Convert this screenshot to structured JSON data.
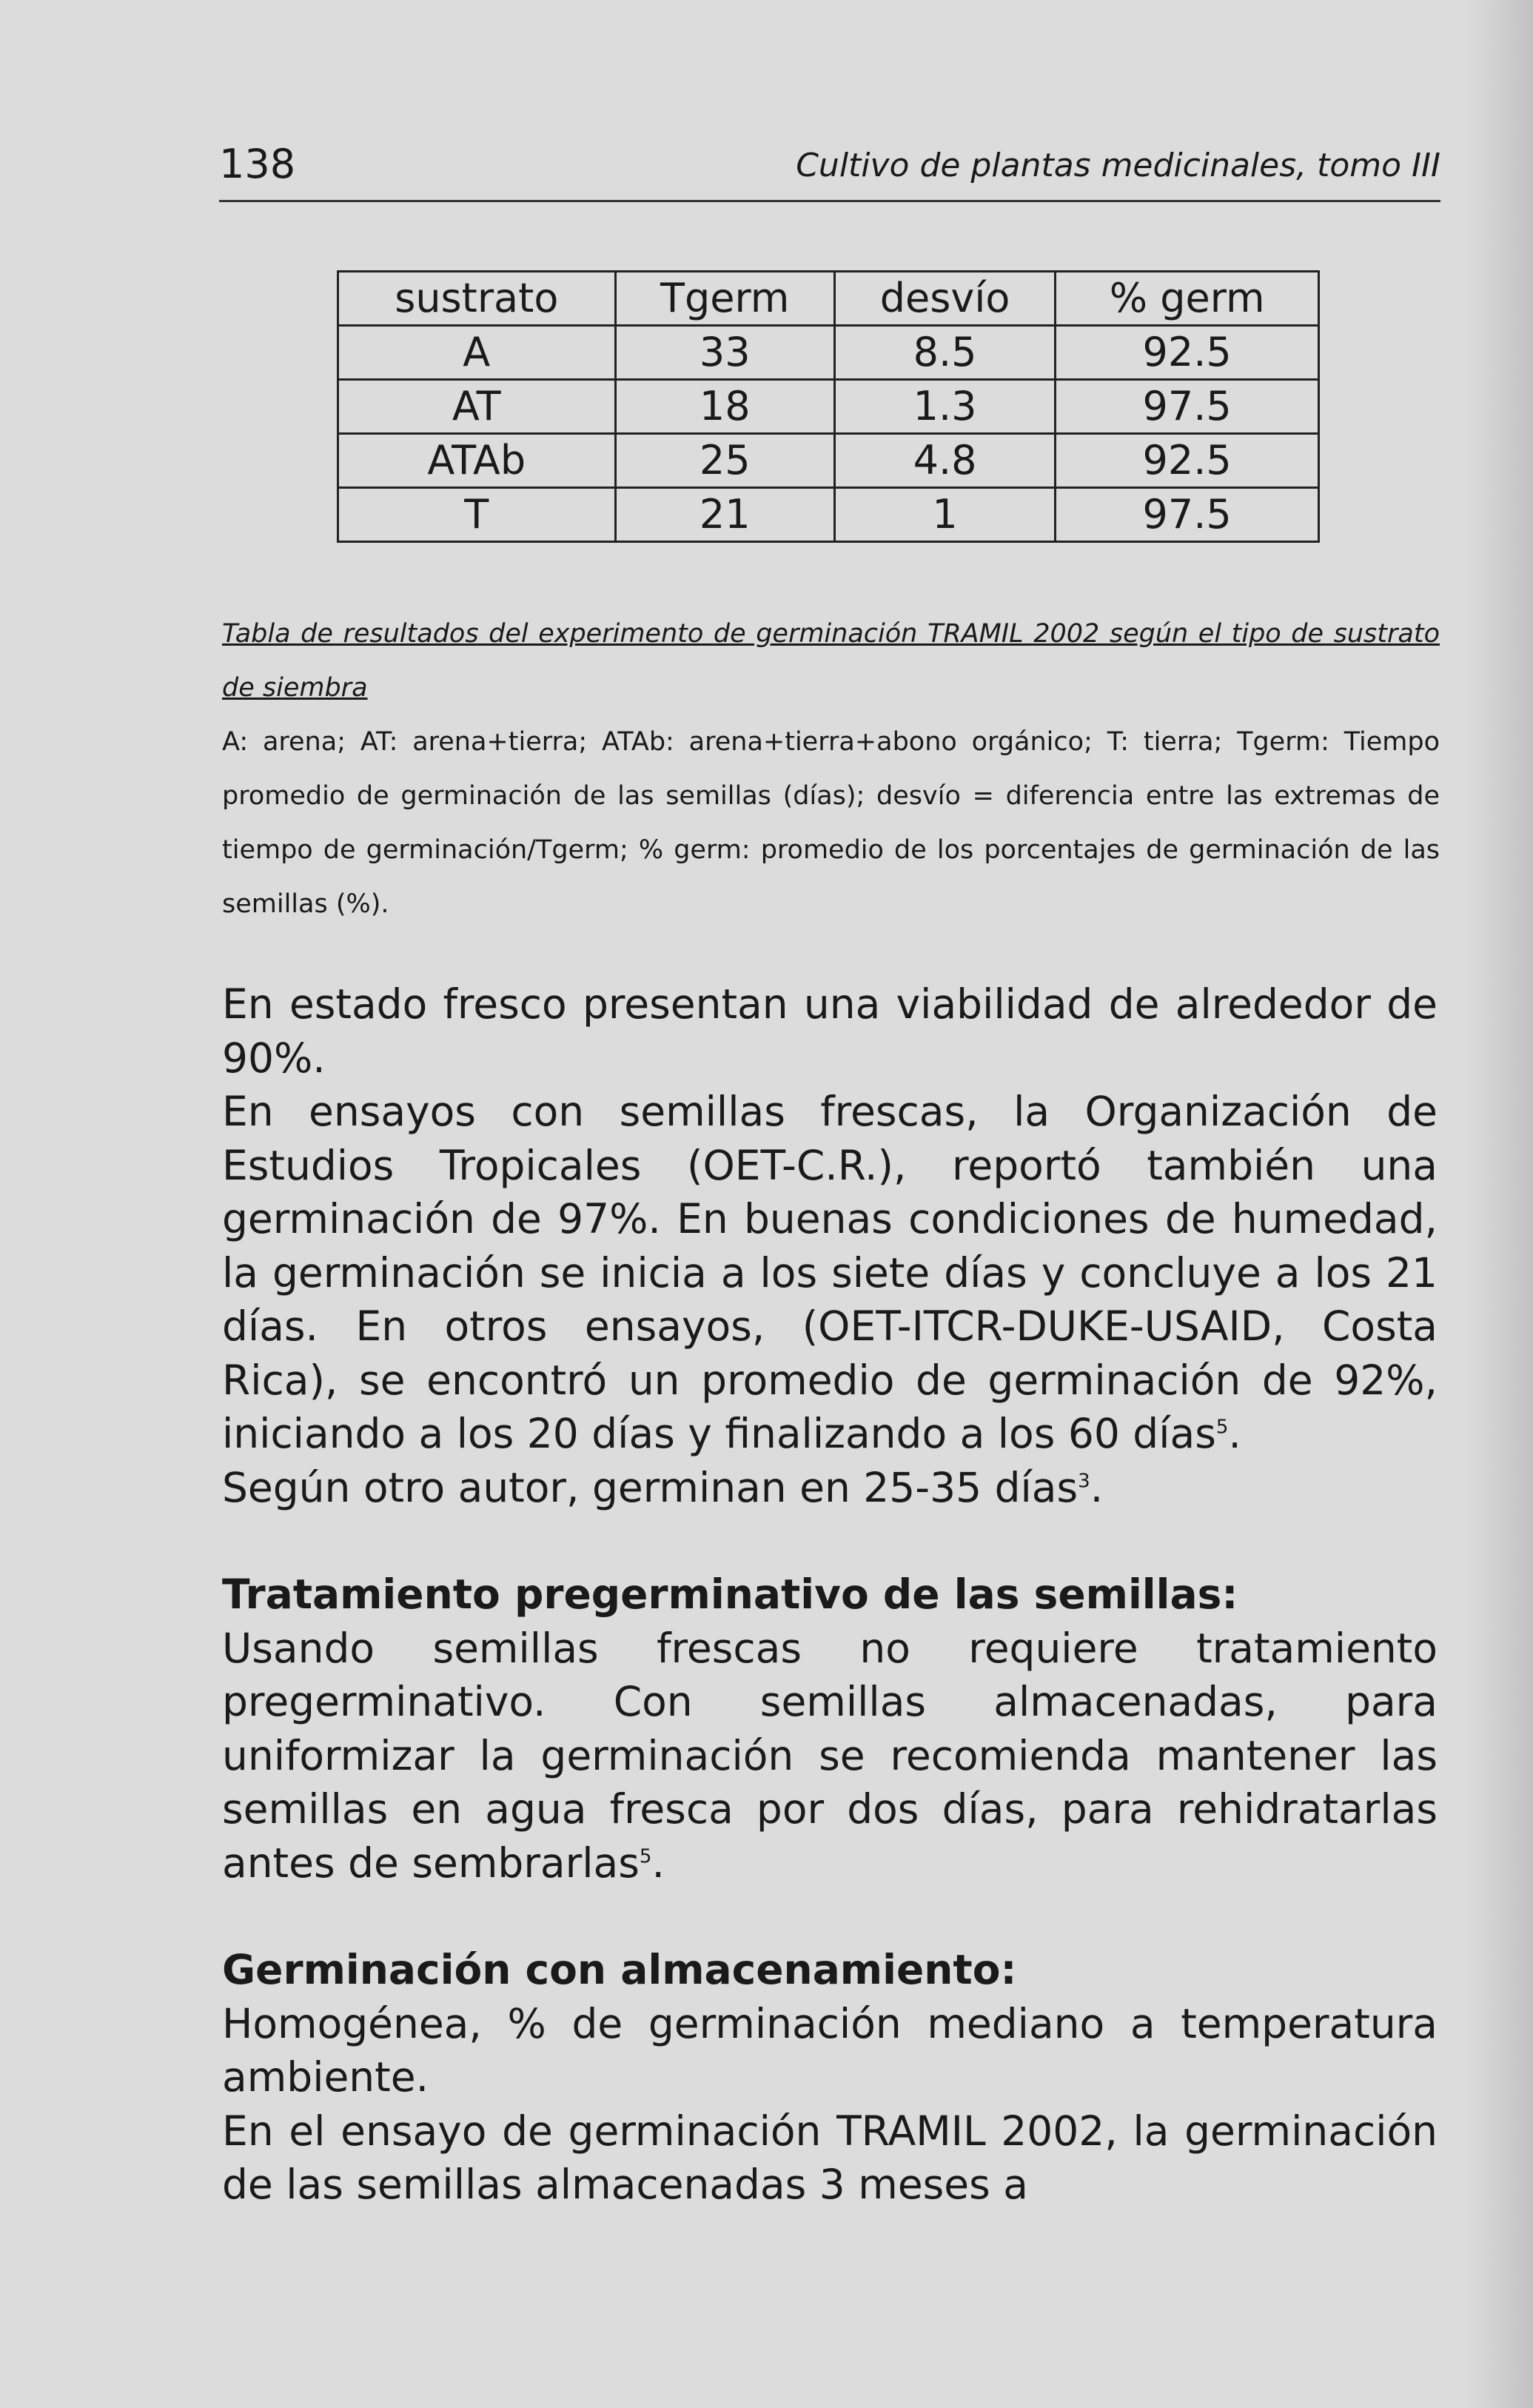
{
  "header": {
    "page_number": "138",
    "running_title": "Cultivo de plantas medicinales, tomo III"
  },
  "table": {
    "columns": [
      "sustrato",
      "Tgerm",
      "desvío",
      "% germ"
    ],
    "rows": [
      [
        "A",
        "33",
        "8.5",
        "92.5"
      ],
      [
        "AT",
        "18",
        "1.3",
        "97.5"
      ],
      [
        "ATAb",
        "25",
        "4.8",
        "92.5"
      ],
      [
        "T",
        "21",
        "1",
        "97.5"
      ]
    ]
  },
  "caption": {
    "title": "Tabla de resultados del experimento de germinación TRAMIL 2002 según el tipo de sustrato de siembra",
    "legend": "A: arena; AT: arena+tierra; ATAb: arena+tierra+abono orgánico; T: tierra; Tgerm: Tiempo promedio de germinación de las semillas (días); desvío = diferencia entre las extremas de tiempo de germinación/Tgerm; % germ: promedio de los porcentajes de germinación de las semillas (%)."
  },
  "body": {
    "p1": "En estado fresco presentan una viabilidad de alrededor de 90%.",
    "p2": "En ensayos con semillas frescas, la Organización de Estudios Tropicales (OET-C.R.), reportó también una germinación de 97%. En buenas condiciones de humedad, la germinación se inicia a los siete días y concluye a los 21 días. En otros ensayos, (OET-ITCR-DUKE-USAID, Costa Rica), se encontró un promedio de germinación de 92%, iniciando a los 20 días y finalizando a los 60 días",
    "p2_ref": "5",
    "p2_end": ".",
    "p3": "Según otro autor, germinan en 25-35 días",
    "p3_ref": "3",
    "p3_end": ".",
    "h1": "Tratamiento pregerminativo de las semillas:",
    "p4": "Usando semillas frescas no requiere tratamiento pregerminativo. Con semillas almacenadas, para uniformizar la germinación se recomienda mantener las semillas en agua fresca por dos días, para rehidratarlas antes de sembrarlas",
    "p4_ref": "5",
    "p4_end": ".",
    "h2": "Germinación con almacenamiento:",
    "p5": "Homogénea, % de germinación mediano a temperatura ambiente.",
    "p6": "En el ensayo de germinación TRAMIL 2002, la germinación de las semillas almacenadas 3 meses a"
  }
}
